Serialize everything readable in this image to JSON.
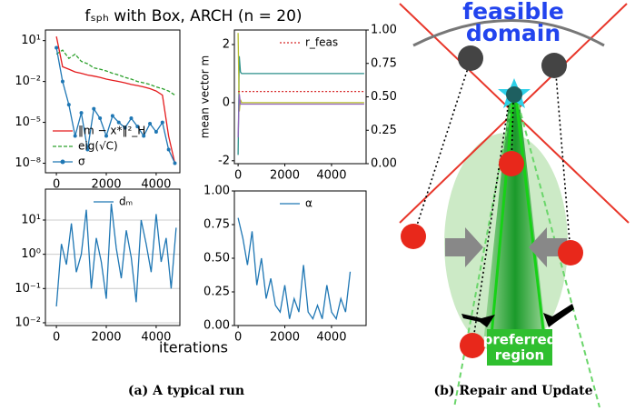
{
  "figure_title": "fₛₚₕ with Box, ARCH (n = 20)",
  "x_label": "iterations",
  "captions": [
    "(a) A typical run",
    "(b) Repair and Update"
  ],
  "diagram": {
    "feasible": "feasible",
    "domain": "domain",
    "preferred": "preferred",
    "region": "region"
  },
  "chart_data": [
    {
      "type": "line",
      "ylog": true,
      "legend_loc": "lower left",
      "xlim": [
        -440,
        4950
      ],
      "xticks": [
        0,
        2000,
        4000
      ],
      "ylim": [
        2e-09,
        60
      ],
      "yticks": [
        {
          "value": 10,
          "label": "10¹"
        },
        {
          "value": 0.01,
          "label": "10⁻²"
        },
        {
          "value": 1e-05,
          "label": "10⁻⁵"
        },
        {
          "value": 1e-08,
          "label": "10⁻⁸"
        }
      ],
      "x": [
        0,
        250,
        500,
        750,
        1000,
        1250,
        1500,
        1750,
        2000,
        2250,
        2500,
        2750,
        3000,
        3250,
        3500,
        3750,
        4000,
        4250,
        4500,
        4750
      ],
      "series": [
        {
          "name": "‖m − x*‖²_H",
          "color": "#e41a1c",
          "linestyle": "solid",
          "values": [
            20,
            0.12,
            0.08,
            0.05,
            0.04,
            0.03,
            0.025,
            0.02,
            0.015,
            0.012,
            0.01,
            0.008,
            0.006,
            0.005,
            0.004,
            0.003,
            0.002,
            0.001,
            1e-06,
            1e-08
          ]
        },
        {
          "name": "eig(√C)",
          "color": "#2ca02c",
          "linestyle": "dashed",
          "values": [
            1,
            2,
            0.5,
            1,
            0.3,
            0.2,
            0.1,
            0.08,
            0.06,
            0.04,
            0.03,
            0.02,
            0.015,
            0.01,
            0.008,
            0.006,
            0.004,
            0.003,
            0.002,
            0.001
          ]
        },
        {
          "name": "σ",
          "color": "#1f77b4",
          "linestyle": "solid",
          "marker": "o",
          "values": [
            3,
            0.01,
            0.0002,
            1e-06,
            5e-05,
            1e-07,
            0.0001,
            2e-05,
            1e-06,
            3e-05,
            1e-05,
            4e-06,
            2e-05,
            5e-06,
            1e-06,
            8e-06,
            2e-06,
            1e-05,
            1e-07,
            1e-08
          ]
        }
      ]
    },
    {
      "type": "line",
      "y_label": "mean vector m",
      "legend_loc": "upper right",
      "xlim": [
        -160,
        5480
      ],
      "xticks": [
        0,
        2000,
        4000
      ],
      "ylim": [
        -2.1,
        2.5
      ],
      "yticks": [
        -2,
        0,
        2
      ],
      "y2lim": [
        0,
        1
      ],
      "y2ticks": [
        {
          "value": 0,
          "label": "0.00"
        },
        {
          "value": 0.25,
          "label": "0.25"
        },
        {
          "value": 0.5,
          "label": "0.50"
        },
        {
          "value": 0.75,
          "label": "0.75"
        },
        {
          "value": 1,
          "label": "1.00"
        }
      ],
      "x": [
        0,
        50,
        100,
        150,
        200,
        400,
        800,
        1200,
        1600,
        2000,
        2400,
        2800,
        3200,
        3600,
        4000,
        4400,
        4800,
        5400
      ],
      "series": [
        {
          "color": "#2a8f8a",
          "linestyle": "solid",
          "values": [
            -1.8,
            1.6,
            1.05,
            1,
            1,
            1,
            1,
            1,
            1,
            1,
            1,
            1,
            1,
            1,
            1,
            1,
            1,
            1
          ]
        },
        {
          "color": "#b5bd2c",
          "linestyle": "solid",
          "values": [
            2.4,
            -0.3,
            0.1,
            0,
            0,
            0,
            0,
            0,
            0,
            0,
            0,
            0,
            0,
            0,
            0,
            0,
            0,
            0
          ]
        },
        {
          "color": "#9467bd",
          "linestyle": "solid",
          "values": [
            -1.2,
            0.3,
            -0.05,
            -0.05,
            -0.05,
            -0.05,
            -0.05,
            -0.05,
            -0.05,
            -0.05,
            -0.05,
            -0.05,
            -0.05,
            -0.05,
            -0.05,
            -0.05,
            -0.05,
            -0.05
          ]
        },
        {
          "name": "r_feas",
          "color": "#d62728",
          "linestyle": "dotted",
          "axis": "y2",
          "values": [
            0.54,
            0.54,
            0.54,
            0.54,
            0.54,
            0.54,
            0.54,
            0.54,
            0.54,
            0.54,
            0.54,
            0.54,
            0.54,
            0.54,
            0.54,
            0.54,
            0.54,
            0.54
          ]
        }
      ]
    },
    {
      "type": "line",
      "ylog": true,
      "grid": true,
      "legend_loc": "upper right",
      "xlim": [
        -440,
        4950
      ],
      "xticks": [
        0,
        2000,
        4000
      ],
      "ylim": [
        0.0083,
        80
      ],
      "yticks": [
        {
          "value": 10,
          "label": "10¹"
        },
        {
          "value": 1,
          "label": "10⁰"
        },
        {
          "value": 0.1,
          "label": "10⁻¹"
        },
        {
          "value": 0.01,
          "label": "10⁻²"
        }
      ],
      "x": [
        0,
        200,
        400,
        600,
        800,
        1000,
        1200,
        1400,
        1600,
        1800,
        2000,
        2200,
        2400,
        2600,
        2800,
        3000,
        3200,
        3400,
        3600,
        3800,
        4000,
        4200,
        4400,
        4600,
        4800
      ],
      "series": [
        {
          "name": "dₘ",
          "color": "#1f77b4",
          "linestyle": "solid",
          "values": [
            0.03,
            2,
            0.5,
            8,
            0.3,
            1,
            20,
            0.1,
            3,
            0.6,
            0.05,
            30,
            1.5,
            0.2,
            5,
            0.8,
            0.04,
            10,
            2,
            0.3,
            15,
            0.6,
            3,
            0.1,
            6
          ]
        }
      ]
    },
    {
      "type": "line",
      "legend_loc": "upper right",
      "xlim": [
        -160,
        5480
      ],
      "xticks": [
        0,
        2000,
        4000
      ],
      "ylim": [
        0,
        1
      ],
      "yticks": [
        {
          "value": 0,
          "label": "0.00"
        },
        {
          "value": 0.25,
          "label": "0.25"
        },
        {
          "value": 0.5,
          "label": "0.50"
        },
        {
          "value": 0.75,
          "label": "0.75"
        },
        {
          "value": 1,
          "label": "1.00"
        }
      ],
      "x": [
        0,
        200,
        400,
        600,
        800,
        1000,
        1200,
        1400,
        1600,
        1800,
        2000,
        2200,
        2400,
        2600,
        2800,
        3000,
        3200,
        3400,
        3600,
        3800,
        4000,
        4200,
        4400,
        4600,
        4800
      ],
      "series": [
        {
          "name": "α",
          "color": "#1f77b4",
          "linestyle": "solid",
          "values": [
            0.8,
            0.65,
            0.45,
            0.7,
            0.3,
            0.5,
            0.2,
            0.35,
            0.15,
            0.1,
            0.3,
            0.05,
            0.2,
            0.1,
            0.45,
            0.1,
            0.05,
            0.15,
            0.05,
            0.3,
            0.1,
            0.05,
            0.2,
            0.1,
            0.4
          ]
        }
      ]
    }
  ]
}
